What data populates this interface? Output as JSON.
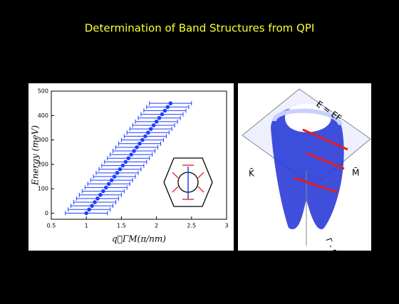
{
  "slide": {
    "title": "Determination of Band Structures from QPI"
  },
  "chart_data": {
    "type": "scatter",
    "xlabel": "q⃗ΓM(π/nm)",
    "ylabel": "Energy (meV)",
    "x": [
      1.0,
      1.04,
      1.08,
      1.12,
      1.16,
      1.2,
      1.24,
      1.28,
      1.32,
      1.36,
      1.4,
      1.44,
      1.48,
      1.52,
      1.56,
      1.6,
      1.64,
      1.68,
      1.72,
      1.76,
      1.8,
      1.84,
      1.88,
      1.92,
      1.96,
      2.0,
      2.04,
      2.08,
      2.12,
      2.16,
      2.2
    ],
    "xerr": [
      0.3,
      0.3,
      0.3,
      0.3,
      0.3,
      0.3,
      0.3,
      0.3,
      0.3,
      0.3,
      0.3,
      0.3,
      0.3,
      0.3,
      0.3,
      0.3,
      0.3,
      0.3,
      0.3,
      0.3,
      0.3,
      0.3,
      0.3,
      0.3,
      0.3,
      0.3,
      0.3,
      0.3,
      0.3,
      0.3,
      0.3
    ],
    "series": [
      {
        "color": "#1f3fff",
        "values": [
          0,
          15,
          30,
          45,
          60,
          75,
          90,
          105,
          120,
          135,
          150,
          165,
          180,
          195,
          210,
          225,
          240,
          255,
          270,
          285,
          300,
          315,
          330,
          345,
          360,
          375,
          390,
          405,
          420,
          435,
          450
        ]
      }
    ],
    "xlim": [
      0.5,
      3.0
    ],
    "xticks": [
      0.5,
      1.0,
      1.5,
      2.0,
      2.5,
      3.0
    ],
    "ylim": [
      -25,
      500
    ],
    "yticks": [
      0,
      100,
      200,
      300,
      400,
      500
    ]
  },
  "illustration": {
    "labels": [
      "E = EF",
      "K̄",
      "M̄",
      "Γ - M̄"
    ]
  }
}
